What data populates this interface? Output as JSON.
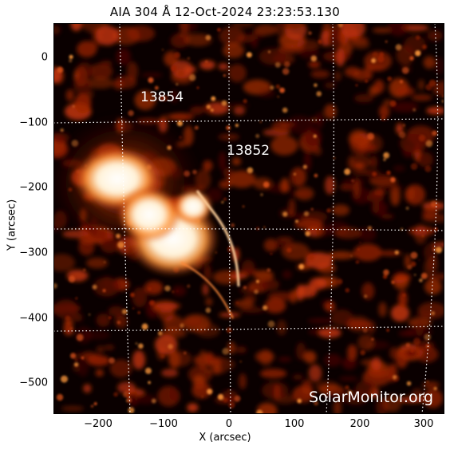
{
  "title": "AIA 304 Å 12-Oct-2024 23:23:53.130",
  "x_axis": {
    "label": "X (arcsec)",
    "ticks": [
      "−200",
      "−100",
      "0",
      "100",
      "200",
      "300"
    ]
  },
  "y_axis": {
    "label": "Y (arcsec)",
    "ticks": [
      "0",
      "−100",
      "−200",
      "−300",
      "−400",
      "−500"
    ]
  },
  "active_regions": [
    {
      "number": "13854"
    },
    {
      "number": "13852"
    }
  ],
  "watermark": "SolarMonitor.org",
  "colors": {
    "background": "#000000",
    "plasma_dark": "#5a0a00",
    "plasma_mid": "#c8360a",
    "plasma_bright": "#ff9a3c",
    "flare_core": "#ffffff"
  }
}
